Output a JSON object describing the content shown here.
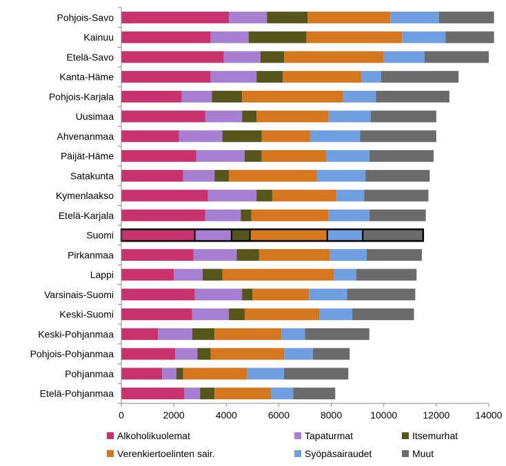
{
  "chart_data": {
    "type": "bar",
    "orientation": "horizontal",
    "stacked": true,
    "title": "",
    "xlabel": "",
    "ylabel": "",
    "xlim": [
      0,
      14000
    ],
    "xticks": [
      0,
      2000,
      4000,
      6000,
      8000,
      10000,
      12000,
      14000
    ],
    "grid": false,
    "legend_position": "bottom",
    "highlighted_category": "Suomi",
    "categories": [
      "Pohjois-Savo",
      "Kainuu",
      "Etelä-Savo",
      "Kanta-Häme",
      "Pohjois-Karjala",
      "Uusimaa",
      "Ahvenanmaa",
      "Päijät-Häme",
      "Satakunta",
      "Kymenlaakso",
      "Etelä-Karjala",
      "Suomi",
      "Pirkanmaa",
      "Lappi",
      "Varsinais-Suomi",
      "Keski-Suomi",
      "Keski-Pohjanmaa",
      "Pohjois-Pohjanmaa",
      "Pohjanmaa",
      "Etelä-Pohjanmaa"
    ],
    "series": [
      {
        "name": "Alkoholikuolemat",
        "color": "#c9336d",
        "values": [
          4100,
          3400,
          3900,
          3400,
          2300,
          3200,
          2200,
          2850,
          2350,
          3300,
          3200,
          2800,
          2750,
          2000,
          2800,
          2700,
          1400,
          2050,
          1550,
          2400
        ]
      },
      {
        "name": "Tapaturmat",
        "color": "#a67fd2",
        "values": [
          1450,
          1450,
          1400,
          1750,
          1150,
          1400,
          1650,
          1850,
          1200,
          1850,
          1350,
          1400,
          1650,
          1100,
          1800,
          1400,
          1300,
          850,
          550,
          600
        ]
      },
      {
        "name": "Itsemurhat",
        "color": "#56551b",
        "values": [
          1550,
          2200,
          900,
          1000,
          1150,
          550,
          1500,
          650,
          550,
          600,
          400,
          700,
          850,
          750,
          400,
          600,
          850,
          500,
          250,
          550
        ]
      },
      {
        "name": "Verenkiertoelinten sair.",
        "color": "#d4771e",
        "values": [
          3150,
          3650,
          3800,
          3000,
          3850,
          2750,
          1850,
          2450,
          3350,
          2450,
          2950,
          2950,
          2700,
          4250,
          2150,
          2850,
          2550,
          2800,
          2450,
          2150
        ]
      },
      {
        "name": "Syöpäsairaudet",
        "color": "#6f9fe0",
        "values": [
          1850,
          1650,
          1550,
          750,
          1250,
          1600,
          1900,
          1650,
          1850,
          1050,
          1550,
          1350,
          1400,
          850,
          1450,
          1250,
          900,
          1100,
          1400,
          850
        ]
      },
      {
        "name": "Muut",
        "color": "#6b6b6b",
        "values": [
          2600,
          2200,
          2450,
          2950,
          2800,
          2500,
          2900,
          2450,
          2450,
          2450,
          2150,
          2300,
          2100,
          2300,
          2600,
          2350,
          2450,
          1400,
          2450,
          1600
        ]
      }
    ]
  }
}
